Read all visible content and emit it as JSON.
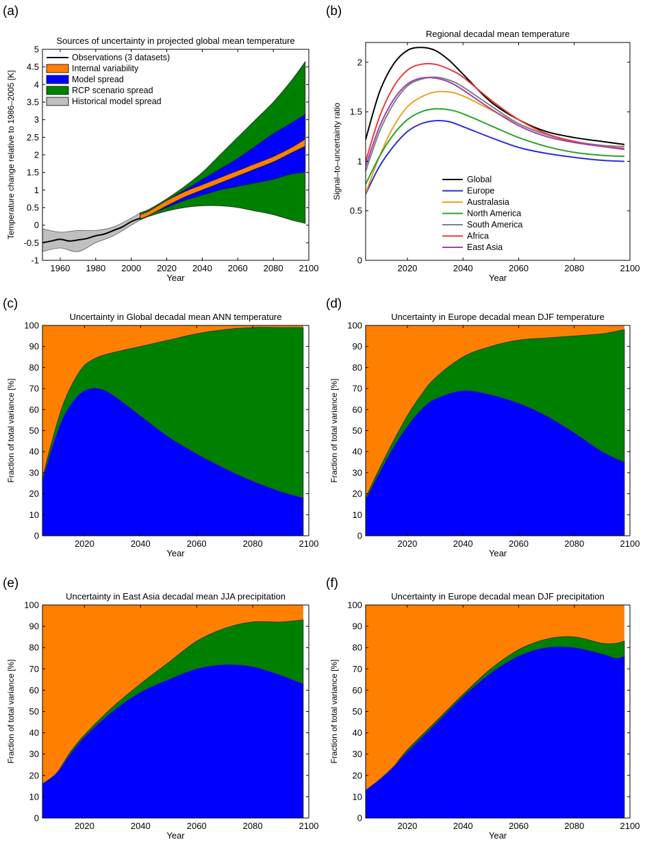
{
  "chart_data": [
    {
      "panel": "(a)",
      "type": "area",
      "title": "Sources of uncertainty in projected global mean temperature",
      "xlabel": "Year",
      "ylabel": "Temperature change relative to 1986–2005 [K]",
      "xlim": [
        1950,
        2100
      ],
      "ylim": [
        -1,
        5
      ],
      "xticks": [
        1960,
        1980,
        2000,
        2020,
        2040,
        2060,
        2080,
        2100
      ],
      "yticks": [
        -1,
        -0.5,
        0,
        0.5,
        1,
        1.5,
        2,
        2.5,
        3,
        3.5,
        4,
        4.5,
        5
      ],
      "legend_position": "top-left",
      "legend": [
        {
          "label": "Observations (3 datasets)",
          "color": "#000000",
          "kind": "line"
        },
        {
          "label": "Internal variability",
          "color": "#ff8000",
          "kind": "patch"
        },
        {
          "label": "Model spread",
          "color": "#0000ff",
          "kind": "patch"
        },
        {
          "label": "RCP scenario spread",
          "color": "#008000",
          "kind": "patch"
        },
        {
          "label": "Historical model spread",
          "color": "#c0c0c0",
          "kind": "patch"
        }
      ],
      "projection_x": [
        2005,
        2010,
        2020,
        2030,
        2040,
        2050,
        2060,
        2070,
        2080,
        2090,
        2098
      ],
      "bands": [
        {
          "name": "RCP scenario spread",
          "color": "#008000",
          "lower": [
            0.15,
            0.25,
            0.4,
            0.5,
            0.55,
            0.55,
            0.5,
            0.4,
            0.3,
            0.15,
            0.05
          ],
          "upper": [
            0.35,
            0.45,
            0.75,
            1.1,
            1.5,
            2.0,
            2.5,
            3.0,
            3.5,
            4.1,
            4.65
          ]
        },
        {
          "name": "Model spread",
          "color": "#0000ff",
          "lower": [
            0.2,
            0.3,
            0.5,
            0.7,
            0.85,
            1.0,
            1.1,
            1.2,
            1.3,
            1.45,
            1.5
          ],
          "upper": [
            0.3,
            0.4,
            0.7,
            1.0,
            1.3,
            1.6,
            1.9,
            2.25,
            2.6,
            2.9,
            3.15
          ]
        },
        {
          "name": "Internal variability",
          "color": "#ff8000",
          "lower": [
            0.18,
            0.28,
            0.55,
            0.8,
            1.0,
            1.2,
            1.4,
            1.6,
            1.8,
            2.05,
            2.25
          ],
          "upper": [
            0.3,
            0.4,
            0.7,
            0.95,
            1.15,
            1.35,
            1.55,
            1.75,
            1.95,
            2.2,
            2.45
          ]
        }
      ],
      "historical_spread": {
        "x": [
          1950,
          1960,
          1970,
          1980,
          1990,
          2000,
          2005
        ],
        "lower": [
          -0.75,
          -0.65,
          -0.75,
          -0.5,
          -0.3,
          0.0,
          0.15
        ],
        "upper": [
          -0.1,
          -0.2,
          -0.15,
          -0.15,
          -0.05,
          0.2,
          0.35
        ]
      },
      "observations": {
        "x": [
          1950,
          1955,
          1960,
          1965,
          1970,
          1975,
          1980,
          1985,
          1990,
          1995,
          2000,
          2005
        ],
        "y": [
          -0.5,
          -0.45,
          -0.4,
          -0.45,
          -0.42,
          -0.38,
          -0.3,
          -0.25,
          -0.15,
          -0.05,
          0.1,
          0.2
        ]
      }
    },
    {
      "panel": "(b)",
      "type": "line",
      "title": "Regional decadal mean temperature",
      "xlabel": "Year",
      "ylabel": "Signal–to–uncertainty ratio",
      "xlim": [
        2005,
        2100
      ],
      "ylim": [
        0,
        2.2
      ],
      "xticks": [
        2020,
        2040,
        2060,
        2080,
        2100
      ],
      "yticks": [
        0,
        0.5,
        1,
        1.5,
        2
      ],
      "legend_position": "center",
      "x": [
        2005,
        2010,
        2015,
        2020,
        2025,
        2030,
        2035,
        2040,
        2050,
        2060,
        2070,
        2080,
        2090,
        2098
      ],
      "series": [
        {
          "name": "Global",
          "color": "#000000",
          "values": [
            1.22,
            1.7,
            1.98,
            2.12,
            2.15,
            2.12,
            2.02,
            1.88,
            1.6,
            1.42,
            1.3,
            1.24,
            1.2,
            1.17
          ]
        },
        {
          "name": "Europe",
          "color": "#2b2bdd",
          "values": [
            0.67,
            0.95,
            1.15,
            1.3,
            1.38,
            1.41,
            1.4,
            1.35,
            1.24,
            1.14,
            1.08,
            1.04,
            1.01,
            1.0
          ]
        },
        {
          "name": "Australasia",
          "color": "#f0a020",
          "values": [
            0.68,
            1.05,
            1.35,
            1.55,
            1.65,
            1.7,
            1.7,
            1.66,
            1.52,
            1.38,
            1.27,
            1.2,
            1.16,
            1.15
          ]
        },
        {
          "name": "North America",
          "color": "#2ca02c",
          "values": [
            0.77,
            1.05,
            1.27,
            1.42,
            1.5,
            1.53,
            1.52,
            1.48,
            1.36,
            1.24,
            1.15,
            1.09,
            1.06,
            1.05
          ]
        },
        {
          "name": "South America",
          "color": "#808080",
          "values": [
            0.9,
            1.3,
            1.58,
            1.76,
            1.83,
            1.85,
            1.82,
            1.75,
            1.56,
            1.38,
            1.27,
            1.2,
            1.16,
            1.15
          ]
        },
        {
          "name": "Africa",
          "color": "#e8383b",
          "values": [
            1.0,
            1.45,
            1.75,
            1.92,
            1.98,
            1.98,
            1.93,
            1.85,
            1.62,
            1.42,
            1.28,
            1.2,
            1.15,
            1.13
          ]
        },
        {
          "name": "East Asia",
          "color": "#a040b0",
          "values": [
            0.95,
            1.35,
            1.62,
            1.78,
            1.84,
            1.84,
            1.8,
            1.72,
            1.53,
            1.36,
            1.25,
            1.19,
            1.15,
            1.12
          ]
        }
      ]
    },
    {
      "panel": "(c)",
      "type": "area",
      "title": "Uncertainty in Global decadal mean ANN temperature",
      "xlabel": "Year",
      "ylabel": "Fraction of total variance  [%]",
      "xlim": [
        2005,
        2100
      ],
      "ylim": [
        0,
        100
      ],
      "xticks": [
        2020,
        2040,
        2060,
        2080,
        2100
      ],
      "yticks": [
        0,
        10,
        20,
        30,
        40,
        50,
        60,
        70,
        80,
        90,
        100
      ],
      "x": [
        2005,
        2008,
        2012,
        2016,
        2020,
        2025,
        2030,
        2040,
        2050,
        2060,
        2070,
        2080,
        2090,
        2098
      ],
      "series": [
        {
          "name": "Model spread",
          "color": "#0000ff",
          "values": [
            26,
            40,
            55,
            64,
            69,
            70,
            67,
            57,
            47,
            39,
            32,
            26,
            21,
            18
          ]
        },
        {
          "name": "RCP scenario spread",
          "color": "#008000",
          "values": [
            1,
            3,
            6,
            9,
            12,
            15,
            20,
            33,
            46,
            57,
            66,
            73,
            78,
            81
          ]
        },
        {
          "name": "Internal variability",
          "color": "#ff8000",
          "values": [
            73,
            57,
            39,
            27,
            19,
            15,
            13,
            10,
            7,
            4,
            2,
            1,
            1,
            1
          ]
        }
      ]
    },
    {
      "panel": "(d)",
      "type": "area",
      "title": "Uncertainty in Europe decadal mean DJF temperature",
      "xlabel": "Year",
      "ylabel": "Fraction of total variance  [%]",
      "xlim": [
        2005,
        2100
      ],
      "ylim": [
        0,
        100
      ],
      "xticks": [
        2020,
        2040,
        2060,
        2080,
        2100
      ],
      "yticks": [
        0,
        10,
        20,
        30,
        40,
        50,
        60,
        70,
        80,
        90,
        100
      ],
      "x": [
        2005,
        2010,
        2015,
        2020,
        2025,
        2030,
        2040,
        2050,
        2060,
        2070,
        2080,
        2090,
        2098
      ],
      "series": [
        {
          "name": "Model spread",
          "color": "#0000ff",
          "values": [
            17,
            30,
            42,
            52,
            60,
            65,
            69,
            67,
            63,
            57,
            49,
            40,
            35
          ]
        },
        {
          "name": "RCP scenario spread",
          "color": "#008000",
          "values": [
            1,
            2,
            3,
            5,
            7,
            10,
            16,
            23,
            30,
            37,
            46,
            56,
            63
          ]
        },
        {
          "name": "Internal variability",
          "color": "#ff8000",
          "values": [
            82,
            68,
            55,
            43,
            33,
            25,
            15,
            10,
            7,
            6,
            5,
            4,
            2
          ]
        }
      ]
    },
    {
      "panel": "(e)",
      "type": "area",
      "title": "Uncertainty in East Asia decadal mean JJA precipitation",
      "xlabel": "Year",
      "ylabel": "Fraction of total variance  [%]",
      "xlim": [
        2005,
        2100
      ],
      "ylim": [
        0,
        100
      ],
      "xticks": [
        2020,
        2040,
        2060,
        2080,
        2100
      ],
      "yticks": [
        0,
        10,
        20,
        30,
        40,
        50,
        60,
        70,
        80,
        90,
        100
      ],
      "x": [
        2005,
        2010,
        2015,
        2020,
        2030,
        2040,
        2050,
        2060,
        2070,
        2080,
        2090,
        2098
      ],
      "series": [
        {
          "name": "Model spread",
          "color": "#0000ff",
          "values": [
            16,
            21,
            30,
            38,
            50,
            59,
            65,
            70,
            72,
            71,
            67,
            63
          ]
        },
        {
          "name": "RCP scenario spread",
          "color": "#008000",
          "values": [
            0,
            0,
            1,
            1,
            2,
            4,
            8,
            13,
            17,
            21,
            25,
            30
          ]
        },
        {
          "name": "Internal variability",
          "color": "#ff8000",
          "values": [
            84,
            79,
            69,
            61,
            48,
            37,
            27,
            17,
            11,
            8,
            8,
            7
          ]
        }
      ]
    },
    {
      "panel": "(f)",
      "type": "area",
      "title": "Uncertainty in Europe decadal mean DJF precipitation",
      "xlabel": "Year",
      "ylabel": "Fraction of total variance  [%]",
      "xlim": [
        2005,
        2100
      ],
      "ylim": [
        0,
        100
      ],
      "xticks": [
        2020,
        2040,
        2060,
        2080,
        2100
      ],
      "yticks": [
        0,
        10,
        20,
        30,
        40,
        50,
        60,
        70,
        80,
        90,
        100
      ],
      "x": [
        2005,
        2010,
        2015,
        2020,
        2030,
        2040,
        2050,
        2060,
        2070,
        2080,
        2090,
        2095,
        2098
      ],
      "series": [
        {
          "name": "Model spread",
          "color": "#0000ff",
          "values": [
            13,
            18,
            24,
            31,
            44,
            57,
            68,
            76,
            80,
            80,
            77,
            75,
            76
          ]
        },
        {
          "name": "RCP scenario spread",
          "color": "#008000",
          "values": [
            0,
            0,
            0,
            1,
            1,
            1,
            2,
            3,
            4,
            5,
            5,
            7,
            7
          ]
        },
        {
          "name": "Internal variability",
          "color": "#ff8000",
          "values": [
            87,
            82,
            76,
            68,
            55,
            42,
            30,
            21,
            16,
            15,
            18,
            18,
            17
          ]
        }
      ]
    }
  ]
}
